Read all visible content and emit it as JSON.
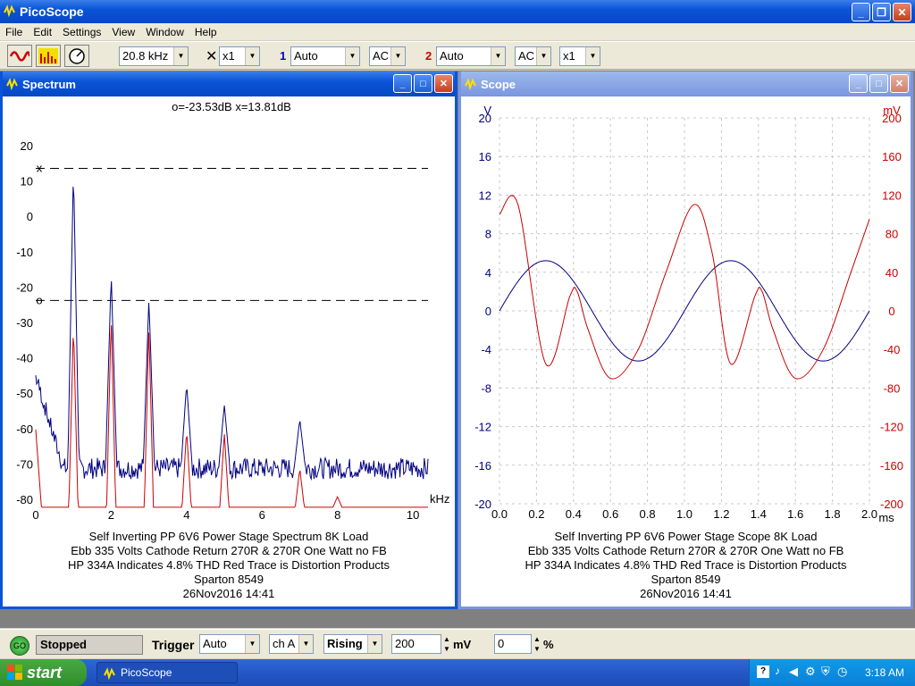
{
  "app": {
    "title": "PicoScope"
  },
  "menu": [
    "File",
    "Edit",
    "Settings",
    "View",
    "Window",
    "Help"
  ],
  "toolbar": {
    "timebase": "20.8 kHz",
    "x_mult": "x1",
    "ch1_num": "1",
    "ch1_range": "Auto",
    "ch1_coupling": "AC",
    "ch2_num": "2",
    "ch2_range": "Auto",
    "ch2_coupling": "AC",
    "ch2_mult": "x1"
  },
  "spectrum": {
    "title": "Spectrum",
    "readout": "o=-23.53dB  x=13.81dB",
    "o_marker": "o",
    "x_marker": "x",
    "caption": [
      "Self Inverting PP 6V6 Power Stage Spectrum 8K Load",
      "Ebb 335 Volts Cathode Return 270R & 270R One Watt no FB",
      "HP 334A Indicates 4.8% THD Red Trace is Distortion Products",
      "Sparton 8549",
      "26Nov2016  14:41"
    ]
  },
  "scope": {
    "title": "Scope",
    "caption": [
      "Self Inverting PP 6V6 Power Stage Scope 8K Load",
      "Ebb 335 Volts Cathode Return 270R & 270R One Watt no FB",
      "HP 334A Indicates 4.8% THD Red Trace is Distortion Products",
      "Sparton 8549",
      "26Nov2016  14:41"
    ]
  },
  "chart_data": [
    {
      "type": "line",
      "xlabel": "kHz",
      "xlim": [
        0,
        10.4
      ],
      "ylim": [
        -80,
        20
      ],
      "xticks": [
        0,
        2,
        4,
        6,
        8,
        10
      ],
      "yticks": [
        20,
        10,
        0,
        -10,
        -20,
        -30,
        -40,
        -50,
        -60,
        -70,
        -80
      ],
      "markers": [
        {
          "label": "x",
          "y": 13.81
        },
        {
          "label": "o",
          "y": -23.53
        }
      ],
      "series": [
        {
          "color": "#000080",
          "peaks": [
            {
              "x": 1,
              "y": 14
            },
            {
              "x": 2,
              "y": -16
            },
            {
              "x": 3,
              "y": -23
            },
            {
              "x": 4,
              "y": -47
            },
            {
              "x": 5,
              "y": -53
            },
            {
              "x": 7,
              "y": -57
            }
          ],
          "floor": -71
        },
        {
          "color": "#cc0000",
          "peaks": [
            {
              "x": 1,
              "y": -30
            },
            {
              "x": 2,
              "y": -28
            },
            {
              "x": 3,
              "y": -31
            },
            {
              "x": 4,
              "y": -60
            },
            {
              "x": 5,
              "y": -61
            },
            {
              "x": 7,
              "y": -71
            },
            {
              "x": 8,
              "y": -79
            }
          ],
          "floor": -82
        }
      ]
    },
    {
      "type": "line",
      "xlabel": "ms",
      "ylabel_left": "V",
      "ylabel_right": "mV",
      "xlim": [
        0,
        2
      ],
      "ylim_left": [
        -20,
        20
      ],
      "ylim_right": [
        -200,
        200
      ],
      "xticks": [
        "0.0",
        "0.2",
        "0.4",
        "0.6",
        "0.8",
        "1.0",
        "1.2",
        "1.4",
        "1.6",
        "1.8",
        "2.0"
      ],
      "yticks_left": [
        "20",
        "16",
        "12",
        "8",
        "4",
        "0",
        "-4",
        "-8",
        "-12",
        "-16",
        "-20"
      ],
      "yticks_right": [
        "200",
        "160",
        "120",
        "80",
        "40",
        "0",
        "-40",
        "-80",
        "-120",
        "-160",
        "-200"
      ],
      "series": [
        {
          "color": "#000080",
          "axis": "left",
          "amplitude_V": 5.2,
          "frequency_kHz": 1.0
        },
        {
          "color": "#cc0000",
          "axis": "right",
          "x_ms": [
            0,
            0.1,
            0.25,
            0.38,
            0.42,
            0.48,
            0.6,
            0.75,
            0.9,
            1.05,
            1.15,
            1.25,
            1.38,
            1.42,
            1.48,
            1.6,
            1.75,
            1.9,
            2.0
          ],
          "y_mV": [
            100,
            110,
            -55,
            15,
            20,
            -20,
            -70,
            -40,
            40,
            110,
            60,
            -55,
            15,
            20,
            -20,
            -70,
            -40,
            40,
            95
          ]
        }
      ]
    }
  ],
  "status": {
    "go_label": "GO",
    "state": "Stopped",
    "trigger_label": "Trigger",
    "trigger_mode": "Auto",
    "trigger_channel": "ch A",
    "trigger_edge": "Rising",
    "trigger_level": "200",
    "level_unit": "mV",
    "pretrigger": "0",
    "pretrigger_unit": "%"
  },
  "taskbar": {
    "start": "start",
    "item": "PicoScope",
    "clock": "3:18 AM"
  }
}
